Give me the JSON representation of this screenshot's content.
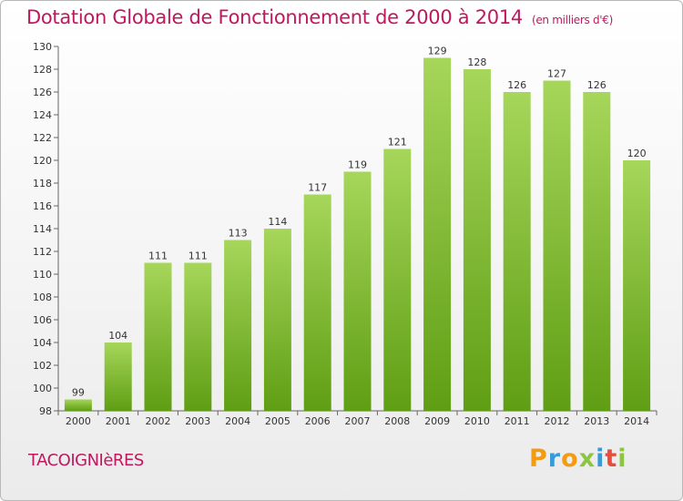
{
  "title": "Dotation Globale de Fonctionnement de 2000 à 2014",
  "unit_note": "(en milliers d'€)",
  "commune": "TACOIGNIèRES",
  "logo": {
    "letters": [
      "P",
      "r",
      "o",
      "x",
      "i",
      "t",
      "i"
    ],
    "colors": [
      "#f39c12",
      "#3a9ad9",
      "#f39c12",
      "#8cc63f",
      "#3a9ad9",
      "#e74c3c",
      "#8cc63f"
    ]
  },
  "colors": {
    "bar_top": "#a6d65a",
    "bar_bottom": "#5f9e14",
    "title": "#c0185f"
  },
  "chart_data": {
    "type": "bar",
    "title": "Dotation Globale de Fonctionnement de 2000 à 2014",
    "categories": [
      "2000",
      "2001",
      "2002",
      "2003",
      "2004",
      "2005",
      "2006",
      "2007",
      "2008",
      "2009",
      "2010",
      "2011",
      "2012",
      "2013",
      "2014"
    ],
    "values": [
      99,
      104,
      111,
      111,
      113,
      114,
      117,
      119,
      121,
      129,
      128,
      126,
      127,
      126,
      120
    ],
    "ylim": [
      98,
      130
    ],
    "yticks": [
      98,
      100,
      102,
      104,
      106,
      108,
      110,
      112,
      114,
      116,
      118,
      120,
      122,
      124,
      126,
      128,
      130
    ],
    "grid": false,
    "xlabel": "",
    "ylabel": ""
  }
}
